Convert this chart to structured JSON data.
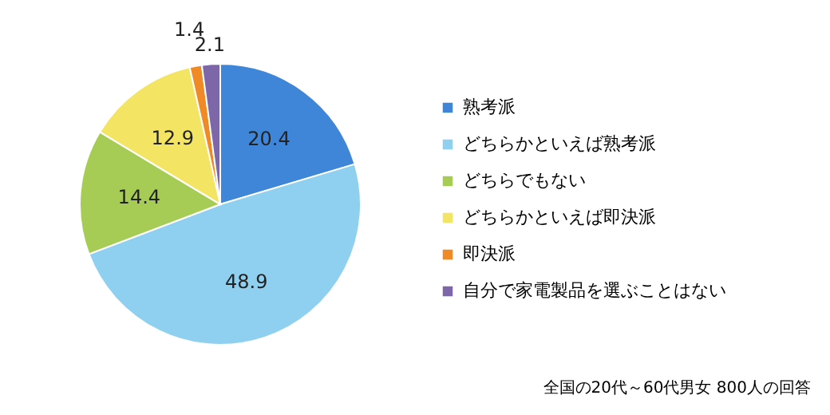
{
  "chart_data": {
    "type": "pie",
    "categories": [
      "熟考派",
      "どちらかといえば熟考派",
      "どちらでもない",
      "どちらかといえば即決派",
      "即決派",
      "自分で家電製品を選ぶことはない"
    ],
    "values": [
      20.4,
      48.9,
      14.4,
      12.9,
      1.4,
      2.1
    ],
    "colors": [
      "#3f86d9",
      "#8fcfef",
      "#a7cc56",
      "#f3e463",
      "#f08a26",
      "#7e67a8"
    ],
    "data_labels": true,
    "legend": "right",
    "annotations": [
      "全国の20代～60代男女 800人の回答"
    ]
  }
}
